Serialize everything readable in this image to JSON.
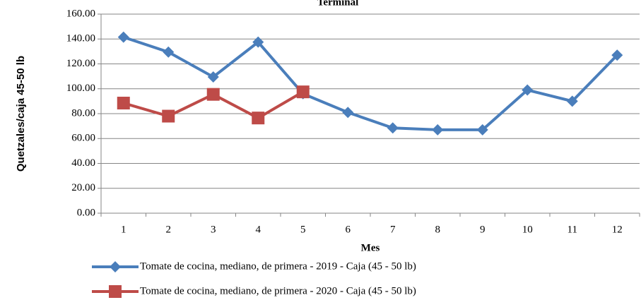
{
  "chart_data": {
    "type": "line",
    "title": "Terminal",
    "x_label": "Mes",
    "y_label": "Quetzales/caja 45-50 lb",
    "categories": [
      "1",
      "2",
      "3",
      "4",
      "5",
      "6",
      "7",
      "8",
      "9",
      "10",
      "11",
      "12"
    ],
    "series": [
      {
        "name": "Tomate de cocina, mediano, de primera - 2019 - Caja (45 - 50 lb)",
        "color": "#4a7ebb",
        "marker": "diamond",
        "values": [
          141.5,
          129.5,
          109.5,
          137.5,
          96,
          81,
          68.5,
          67,
          67,
          99,
          90,
          127
        ]
      },
      {
        "name": "Tomate de cocina, mediano, de primera - 2020 - Caja (45 - 50 lb)",
        "color": "#be4b48",
        "marker": "square",
        "values": [
          88.5,
          78,
          95.5,
          76.5,
          97.5,
          null,
          null,
          null,
          null,
          null,
          null,
          null
        ]
      }
    ],
    "ylim": [
      0,
      160
    ],
    "yticks": [
      {
        "value": 0,
        "label": "0.00"
      },
      {
        "value": 20,
        "label": "20.00"
      },
      {
        "value": 40,
        "label": "40.00"
      },
      {
        "value": 60,
        "label": "60.00"
      },
      {
        "value": 80,
        "label": "80.00"
      },
      {
        "value": 100,
        "label": "100.00"
      },
      {
        "value": 120,
        "label": "120.00"
      },
      {
        "value": 140,
        "label": "140.00"
      },
      {
        "value": 160,
        "label": "160.00"
      }
    ],
    "grid": true
  }
}
